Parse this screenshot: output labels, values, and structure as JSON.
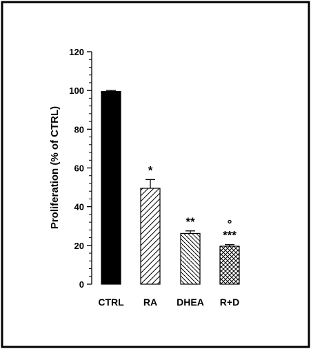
{
  "chart_data": {
    "type": "bar",
    "title": "",
    "xlabel": "",
    "ylabel": "Proliferation (% of CTRL)",
    "ylim": [
      0,
      120
    ],
    "yticks": [
      0,
      20,
      40,
      60,
      80,
      100,
      120
    ],
    "minor_ticks_per_major": 4,
    "grid": false,
    "categories": [
      "CTRL",
      "RA",
      "DHEA",
      "R+D"
    ],
    "values": [
      99.5,
      49.5,
      26.2,
      19.6
    ],
    "errors": [
      0.5,
      4.5,
      1.3,
      0.8
    ],
    "fills": [
      "solid",
      "diagonal-up",
      "diagonal-down",
      "crosshatch"
    ],
    "significance": [
      "",
      "*",
      "**",
      "***"
    ],
    "secondary_marks": [
      "",
      "",
      "",
      "°"
    ],
    "colors": {
      "bar_stroke": "#000000",
      "solid_fill": "#000000",
      "frame": "#000000"
    }
  }
}
